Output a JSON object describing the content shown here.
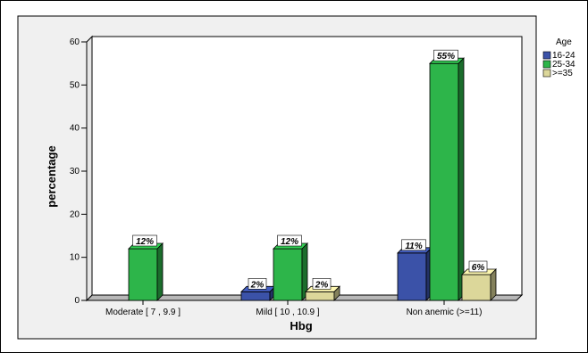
{
  "chart_data": {
    "type": "bar",
    "xlabel": "Hbg",
    "ylabel": "percentage",
    "ylim": [
      0,
      60
    ],
    "yticks": [
      0,
      10,
      20,
      30,
      40,
      50,
      60
    ],
    "categories": [
      "Moderate [ 7 , 9.9 ]",
      "Mild [ 10 , 10.9 ]",
      "Non anemic (>=11)"
    ],
    "legend": {
      "title": "Age",
      "placement": "top-right"
    },
    "series": [
      {
        "name": "16-24",
        "color": "#3b52a8",
        "values": [
          0,
          2,
          11
        ],
        "labels": [
          "",
          "2%",
          "11%"
        ]
      },
      {
        "name": "25-34",
        "color": "#2db54a",
        "values": [
          12,
          12,
          55
        ],
        "labels": [
          "12%",
          "12%",
          "55%"
        ]
      },
      {
        "name": ">=35",
        "color": "#dcd79a",
        "values": [
          0,
          2,
          6
        ],
        "labels": [
          "",
          "2%",
          "6%"
        ]
      }
    ],
    "grid": false
  }
}
